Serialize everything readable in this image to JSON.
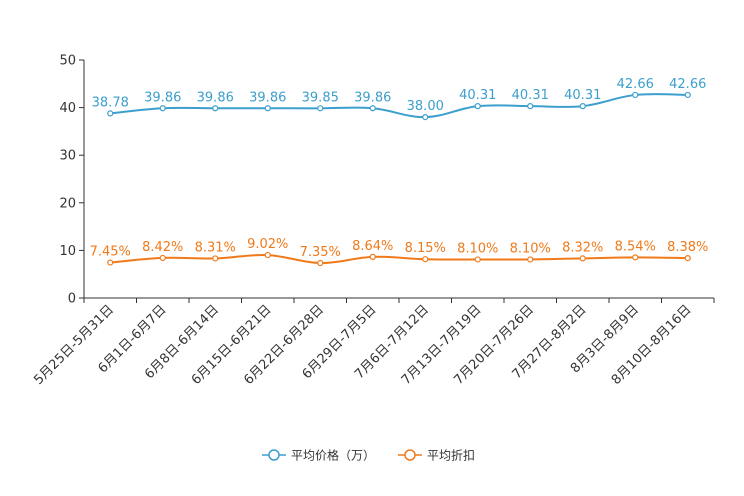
{
  "chart_data": {
    "type": "line",
    "categories": [
      "5月25日-5月31日",
      "6月1日-6月7日",
      "6月8日-6月14日",
      "6月15日-6月21日",
      "6月22日-6月28日",
      "6月29日-7月5日",
      "7月6日-7月12日",
      "7月13日-7月19日",
      "7月20日-7月26日",
      "7月27日-8月2日",
      "8月3日-8月9日",
      "8月10日-8月16日"
    ],
    "series": [
      {
        "name": "平均价格（万）",
        "color": "#3c9fcd",
        "values": [
          38.78,
          39.86,
          39.86,
          39.86,
          39.85,
          39.86,
          38.0,
          40.31,
          40.31,
          40.31,
          42.66,
          42.66
        ],
        "labels": [
          "38.78",
          "39.86",
          "39.86",
          "39.86",
          "39.85",
          "39.86",
          "38.00",
          "40.31",
          "40.31",
          "40.31",
          "42.66",
          "42.66"
        ]
      },
      {
        "name": "平均折扣",
        "color": "#f07a1a",
        "values": [
          7.45,
          8.42,
          8.31,
          9.02,
          7.35,
          8.64,
          8.15,
          8.1,
          8.1,
          8.32,
          8.54,
          8.38
        ],
        "labels": [
          "7.45%",
          "8.42%",
          "8.31%",
          "9.02%",
          "7.35%",
          "8.64%",
          "8.15%",
          "8.10%",
          "8.10%",
          "8.32%",
          "8.54%",
          "8.38%"
        ]
      }
    ],
    "yticks": [
      "0",
      "10",
      "20",
      "30",
      "40",
      "50"
    ],
    "ylim": [
      0,
      50
    ],
    "grid": false,
    "legend_position": "bottom-center",
    "title": "",
    "xlabel": "",
    "ylabel": ""
  }
}
